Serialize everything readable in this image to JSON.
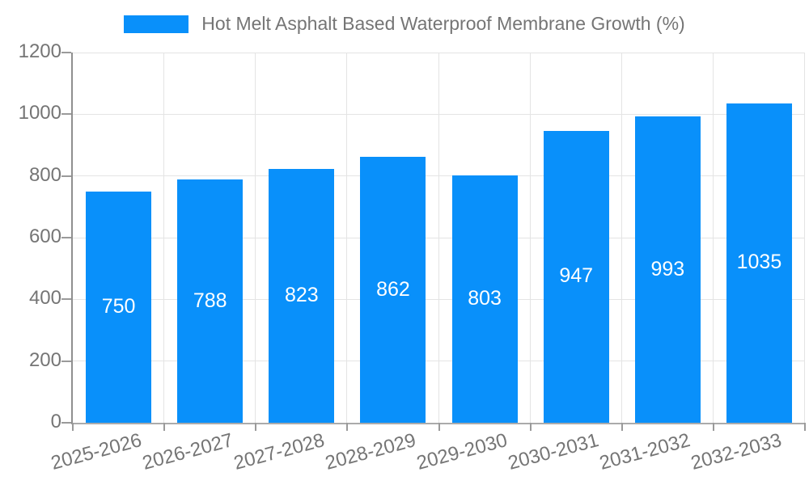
{
  "chart_data": {
    "type": "bar",
    "title": "",
    "xlabel": "",
    "ylabel": "",
    "legend": {
      "label": "Hot Melt Asphalt Based Waterproof Membrane Growth (%)",
      "position": "top"
    },
    "categories": [
      "2025-2026",
      "2026-2027",
      "2027-2028",
      "2028-2029",
      "2029-2030",
      "2030-2031",
      "2031-2032",
      "2032-2033"
    ],
    "values": [
      750,
      788,
      823,
      862,
      803,
      947,
      993,
      1035
    ],
    "ylim": [
      0,
      1200
    ],
    "yticks": [
      0,
      200,
      400,
      600,
      800,
      1000,
      1200
    ],
    "grid": true,
    "bar_value_labels_shown": true,
    "x_label_rotation_deg": -15,
    "colors": {
      "bar": "#0990fa",
      "bar_label_text": "#ffffff",
      "axis_text": "#757575",
      "gridline": "#e4e4e4",
      "axis_line": "#9a9a9a"
    }
  }
}
